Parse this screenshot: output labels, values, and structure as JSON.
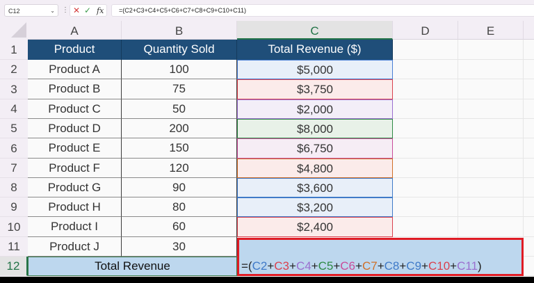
{
  "formula_bar": {
    "name_box": "C12",
    "formula": "=(C2+C3+C4+C5+C6+C7+C8+C9+C10+C11)",
    "icons": {
      "cancel": "cross-icon",
      "enter": "check-icon",
      "function": "fx-icon"
    }
  },
  "columns": [
    "A",
    "B",
    "C",
    "D",
    "E"
  ],
  "selected_column": "C",
  "rows": [
    "1",
    "2",
    "3",
    "4",
    "5",
    "6",
    "7",
    "8",
    "9",
    "10",
    "11",
    "12"
  ],
  "selected_row": "12",
  "table": {
    "headers": [
      "Product",
      "Quantity Sold",
      "Total Revenue ($)"
    ],
    "data": [
      {
        "product": "Product A",
        "qty": "100",
        "revenue": "$5,000",
        "ref_color": "#4a7fd4",
        "fill": "#e8eff9"
      },
      {
        "product": "Product B",
        "qty": "75",
        "revenue": "$3,750",
        "ref_color": "#d9414f",
        "fill": "#fbebea"
      },
      {
        "product": "Product C",
        "qty": "50",
        "revenue": "$2,000",
        "ref_color": "#9a6fcf",
        "fill": "#f3eef8"
      },
      {
        "product": "Product D",
        "qty": "200",
        "revenue": "$8,000",
        "ref_color": "#2f8a45",
        "fill": "#e8f1e8"
      },
      {
        "product": "Product E",
        "qty": "150",
        "revenue": "$6,750",
        "ref_color": "#c94d9a",
        "fill": "#f6edf5"
      },
      {
        "product": "Product F",
        "qty": "120",
        "revenue": "$4,800",
        "ref_color": "#d07028",
        "fill": "#fbebea"
      },
      {
        "product": "Product G",
        "qty": "90",
        "revenue": "$3,600",
        "ref_color": "#3f7ac8",
        "fill": "#e8eff9"
      },
      {
        "product": "Product H",
        "qty": "80",
        "revenue": "$3,200",
        "ref_color": "#3f7ac8",
        "fill": "#e8eff9"
      },
      {
        "product": "Product I",
        "qty": "60",
        "revenue": "$2,400",
        "ref_color": "#d9414f",
        "fill": "#fbebea"
      },
      {
        "product": "Product J",
        "qty": "30",
        "revenue": "",
        "ref_color": "#9a6fcf",
        "fill": "#fafafa"
      }
    ],
    "total_label": "Total Revenue",
    "active_cell_formula": [
      {
        "t": "=(",
        "c": "#222222"
      },
      {
        "t": "C2",
        "c": "#3f7ac8"
      },
      {
        "t": "+",
        "c": "#222222"
      },
      {
        "t": "C3",
        "c": "#d9414f"
      },
      {
        "t": "+",
        "c": "#222222"
      },
      {
        "t": "C4",
        "c": "#9a6fcf"
      },
      {
        "t": "+",
        "c": "#222222"
      },
      {
        "t": "C5",
        "c": "#2f8a45"
      },
      {
        "t": "+",
        "c": "#222222"
      },
      {
        "t": "C6",
        "c": "#c94d9a"
      },
      {
        "t": "+",
        "c": "#222222"
      },
      {
        "t": "C7",
        "c": "#d07028"
      },
      {
        "t": "+",
        "c": "#222222"
      },
      {
        "t": "C8",
        "c": "#3f7ac8"
      },
      {
        "t": "+",
        "c": "#222222"
      },
      {
        "t": "C9",
        "c": "#3f7ac8"
      },
      {
        "t": "+",
        "c": "#222222"
      },
      {
        "t": "C10",
        "c": "#d9414f"
      },
      {
        "t": "+",
        "c": "#222222"
      },
      {
        "t": "C11",
        "c": "#9a6fcf"
      },
      {
        "t": ")",
        "c": "#222222"
      }
    ]
  },
  "colors": {
    "header_fill": "#1f4e79",
    "total_fill": "#bdd7ee",
    "active_border": "#e01b24",
    "selection_green": "#217346"
  }
}
